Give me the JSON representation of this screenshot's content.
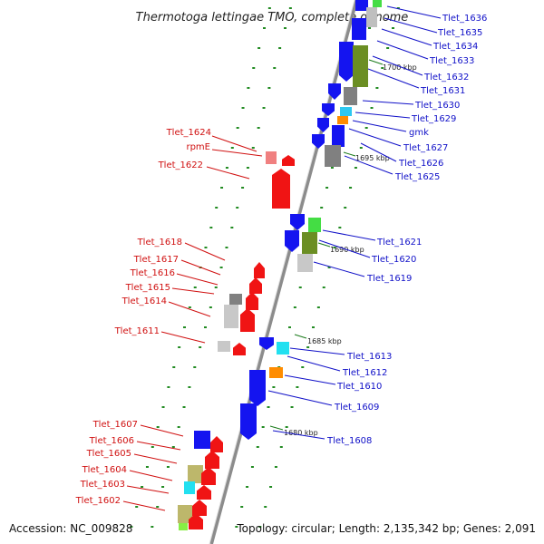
{
  "title": "Thermotoga lettingae TMO, complete genome",
  "footer": {
    "accession": "Accession: NC_009828",
    "topology": "Topology: circular; Length: 2,135,342 bp; Genes: 2,091"
  },
  "colors": {
    "forward_label": "#1010c8",
    "reverse_label": "#d01010",
    "forward_gene": "#1414f0",
    "reverse_gene": "#f01414",
    "tick": "#228b22",
    "backbone": "#888888"
  },
  "kbp_markers": [
    "1700 kbp",
    "1695 kbp",
    "1690 kbp",
    "1685 kbp",
    "1680 kbp"
  ],
  "forward_labels": [
    "Tlet_1636",
    "Tlet_1635",
    "Tlet_1634",
    "Tlet_1633",
    "Tlet_1632",
    "Tlet_1631",
    "Tlet_1630",
    "Tlet_1629",
    "gmk",
    "Tlet_1627",
    "Tlet_1626",
    "Tlet_1625",
    "Tlet_1621",
    "Tlet_1620",
    "Tlet_1619",
    "Tlet_1613",
    "Tlet_1612",
    "Tlet_1610",
    "Tlet_1609",
    "Tlet_1608"
  ],
  "reverse_labels": [
    "Tlet_1624",
    "rpmE",
    "Tlet_1622",
    "Tlet_1618",
    "Tlet_1617",
    "Tlet_1616",
    "Tlet_1615",
    "Tlet_1614",
    "Tlet_1611",
    "Tlet_1607",
    "Tlet_1606",
    "Tlet_1605",
    "Tlet_1604",
    "Tlet_1603",
    "Tlet_1602"
  ]
}
